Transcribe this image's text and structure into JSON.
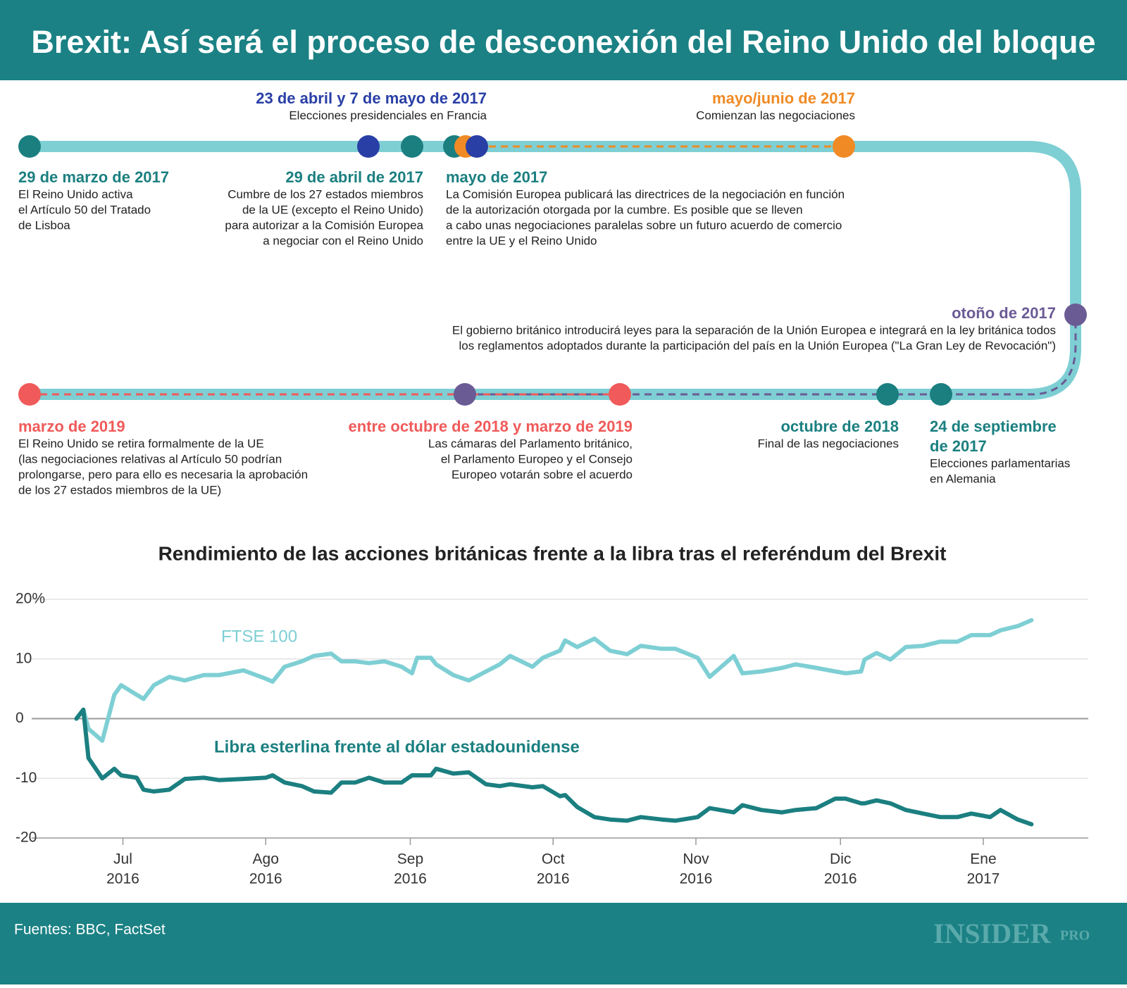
{
  "header": {
    "title": "Brexit: Así será el proceso de desconexión del Reino Unido del bloque"
  },
  "timeline": {
    "events": [
      {
        "date": [
          "23 de abril y 7 de mayo de 2017"
        ],
        "color": "#2a3fa6",
        "lines": [
          "Elecciones presidenciales en Francia"
        ]
      },
      {
        "date": [
          "mayo/junio de 2017"
        ],
        "color": "#f08a24",
        "lines": [
          "Comienzan las negociaciones"
        ]
      },
      {
        "date": [
          "29 de marzo de 2017"
        ],
        "color": "#1b7f80",
        "lines": [
          "El Reino Unido activa",
          "el Artículo 50 del Tratado",
          "de Lisboa"
        ]
      },
      {
        "date": [
          "29 de abril de 2017"
        ],
        "color": "#1b7f80",
        "lines": [
          "Cumbre de los 27 estados miembros",
          "de la UE (excepto el Reino Unido)",
          "para autorizar a la Comisión Europea",
          "a negociar con el Reino Unido"
        ]
      },
      {
        "date": [
          "mayo de 2017"
        ],
        "color": "#1b7f80",
        "lines": [
          "La Comisión Europea publicará las directrices de la negociación en función",
          "de la autorización otorgada por la cumbre. Es posible que se lleven",
          "a cabo unas negociaciones paralelas sobre un futuro acuerdo de comercio",
          "entre la UE y el Reino Unido"
        ]
      },
      {
        "date": [
          "otoño de 2017"
        ],
        "color": "#6b5b95",
        "lines": [
          "El gobierno británico introducirá leyes para la separación de la Unión Europea e integrará en la ley británica todos",
          "los reglamentos adoptados durante la participación del país en la Unión Europea (\"La Gran Ley de Revocación\")"
        ]
      },
      {
        "date": [
          "marzo de 2019"
        ],
        "color": "#f05a5a",
        "lines": [
          "El Reino Unido se retira formalmente de la UE",
          "(las negociaciones relativas al Artículo 50 podrían",
          "prolongarse, pero para ello es necesaria la aprobación",
          "de los 27 estados miembros de la UE)"
        ]
      },
      {
        "date": [
          "entre octubre de 2018 y marzo de 2019"
        ],
        "color": "#f05a5a",
        "lines": [
          "Las cámaras del Parlamento británico,",
          "el Parlamento Europeo y el Consejo",
          "Europeo votarán sobre el acuerdo"
        ]
      },
      {
        "date": [
          "octubre de 2018"
        ],
        "color": "#1b7f80",
        "lines": [
          "Final de las negociaciones"
        ]
      },
      {
        "date": [
          "24 de septiembre",
          "de 2017"
        ],
        "color": "#1b7f80",
        "lines": [
          "Elecciones parlamentarias",
          "en Alemania"
        ]
      }
    ]
  },
  "chart_data": {
    "type": "line",
    "title": "Rendimiento de las acciones británicas frente a la libra tras el referéndum del Brexit",
    "x": [
      2016.473,
      2016.477,
      2016.48,
      2016.488,
      2016.495,
      2016.499,
      2016.508,
      2016.512,
      2016.518,
      2016.527,
      2016.536,
      2016.547,
      2016.556,
      2016.57,
      2016.583,
      2016.587,
      2016.594,
      2016.604,
      2016.611,
      2016.621,
      2016.627,
      2016.635,
      2016.643,
      2016.652,
      2016.662,
      2016.668,
      2016.671,
      2016.679,
      2016.682,
      2016.692,
      2016.701,
      2016.711,
      2016.719,
      2016.725,
      2016.738,
      2016.744,
      2016.754,
      2016.757,
      2016.764,
      2016.774,
      2016.783,
      2016.793,
      2016.801,
      2016.813,
      2016.821,
      2016.834,
      2016.841,
      2016.855,
      2016.86,
      2016.871,
      2016.883,
      2016.891,
      2016.903,
      2016.914,
      2016.92,
      2016.929,
      2016.931,
      2016.938,
      2016.946,
      2016.955,
      2016.965,
      2016.975,
      2016.985,
      2016.993,
      2017.004,
      2017.01,
      2017.02,
      2017.028
    ],
    "series": [
      {
        "name": "FTSE 100",
        "color": "#7ecfd4",
        "values": [
          0,
          1.5,
          -1.7,
          -3.7,
          4,
          5.6,
          4,
          3.3,
          5.6,
          7,
          6.4,
          7.3,
          7.3,
          8.1,
          6.7,
          6.2,
          8.7,
          9.6,
          10.5,
          10.9,
          9.6,
          9.6,
          9.3,
          9.6,
          8.7,
          7.6,
          10.2,
          10.2,
          9.1,
          7.3,
          6.4,
          7.9,
          9.1,
          10.5,
          8.7,
          10.2,
          11.4,
          13.1,
          12,
          13.4,
          11.4,
          10.8,
          12.2,
          11.7,
          11.7,
          10.2,
          7,
          10.5,
          7.6,
          7.9,
          8.5,
          9.1,
          8.5,
          7.9,
          7.6,
          7.9,
          9.9,
          11,
          9.9,
          12,
          12.2,
          12.9,
          12.9,
          14,
          14,
          14.8,
          15.5,
          16.5
        ]
      },
      {
        "name": "Libra esterlina frente al dólar estadounidense",
        "color": "#1b7f80",
        "values": [
          0,
          1.5,
          -6.6,
          -10,
          -8.4,
          -9.5,
          -9.9,
          -11.9,
          -12.2,
          -11.9,
          -10.1,
          -9.9,
          -10.3,
          -10.1,
          -9.9,
          -9.5,
          -10.7,
          -11.3,
          -12.2,
          -12.4,
          -10.7,
          -10.7,
          -9.9,
          -10.7,
          -10.7,
          -9.5,
          -9.5,
          -9.5,
          -8.4,
          -9.2,
          -9,
          -11,
          -11.3,
          -11,
          -11.5,
          -11.3,
          -13,
          -12.8,
          -14.8,
          -16.5,
          -16.9,
          -17.1,
          -16.5,
          -16.9,
          -17.1,
          -16.5,
          -15,
          -15.7,
          -14.5,
          -15.3,
          -15.7,
          -15.3,
          -15,
          -13.4,
          -13.4,
          -14.2,
          -14.2,
          -13.7,
          -14.2,
          -15.3,
          -15.9,
          -16.5,
          -16.5,
          -15.9,
          -16.5,
          -15.3,
          -16.9,
          -17.7
        ]
      }
    ],
    "xlim": [
      2016.447,
      2017.061
    ],
    "xticks": [
      {
        "value": 2016.5,
        "label": [
          "Jul",
          "2016"
        ]
      },
      {
        "value": 2016.583,
        "label": [
          "Ago",
          "2016"
        ]
      },
      {
        "value": 2016.667,
        "label": [
          "Sep",
          "2016"
        ]
      },
      {
        "value": 2016.75,
        "label": [
          "Oct",
          "2016"
        ]
      },
      {
        "value": 2016.833,
        "label": [
          "Nov",
          "2016"
        ]
      },
      {
        "value": 2016.917,
        "label": [
          "Dic",
          "2016"
        ]
      },
      {
        "value": 2017.0,
        "label": [
          "Ene",
          "2017"
        ]
      }
    ],
    "ylim": [
      -20,
      20
    ],
    "yticks": [
      {
        "value": 20,
        "label": "20%"
      },
      10,
      0,
      -10,
      -20
    ],
    "grid": true
  },
  "footer": {
    "source": "Fuentes: BBC, FactSet",
    "logo": {
      "name": "INSIDER",
      "suffix": "PRO"
    }
  }
}
